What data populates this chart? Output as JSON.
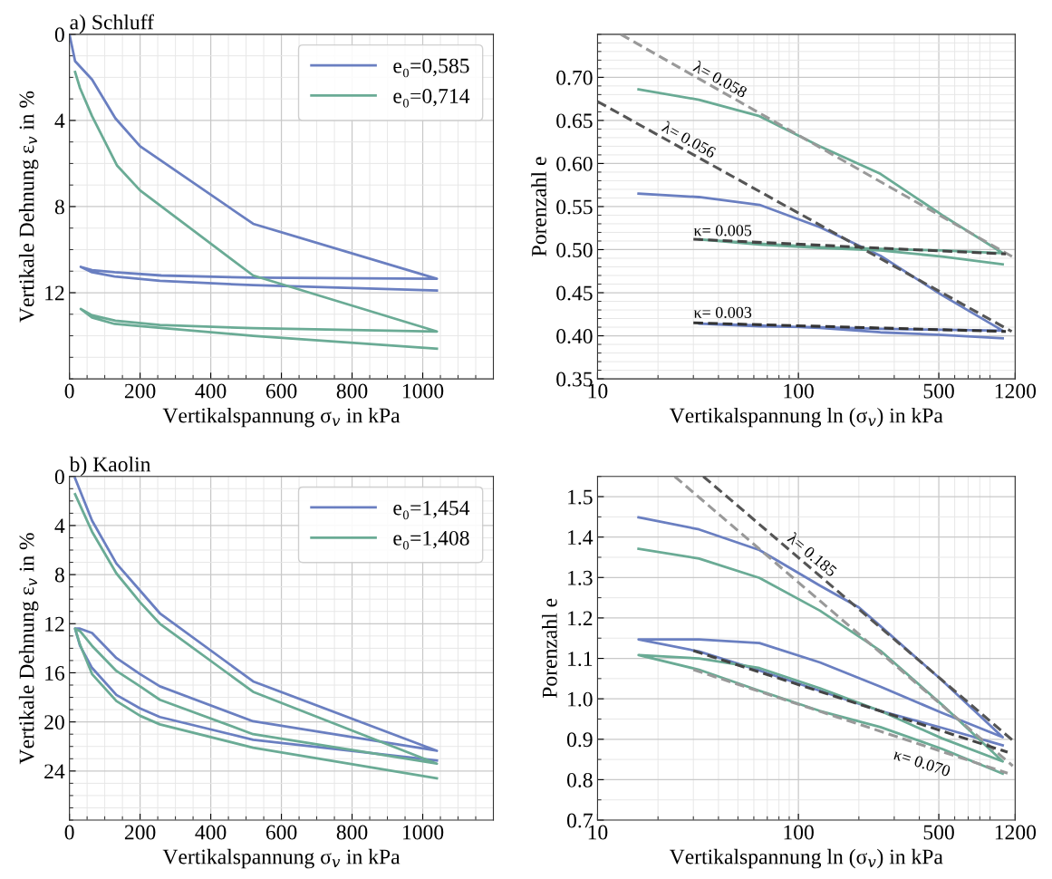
{
  "chart_data": [
    {
      "type": "line",
      "title": "a) Schluff",
      "xlabel": "Vertikalspannung σ$_{v}$ in kPa",
      "ylabel": "Vertikale Dehnung ε$_{v}$ in %",
      "xlim": [
        0,
        1200
      ],
      "xticks": [
        0,
        200,
        400,
        600,
        800,
        1000
      ],
      "ylim": [
        16,
        0
      ],
      "yticks": [
        0,
        4,
        8,
        12
      ],
      "grid": true,
      "legend": "top right",
      "series": [
        {
          "name": "e₀=0,585",
          "color": "#6a7fc1",
          "x": [
            0,
            16,
            64,
            130,
            200,
            520,
            1040,
            520,
            260,
            128,
            64,
            32,
            64,
            128,
            256,
            520,
            1040
          ],
          "values": [
            0,
            1.25,
            2.1,
            3.9,
            5.2,
            8.8,
            11.35,
            11.3,
            11.2,
            11.05,
            10.95,
            10.8,
            11.05,
            11.25,
            11.45,
            11.65,
            11.9
          ]
        },
        {
          "name": "e₀=0,714",
          "color": "#6aab95",
          "x": [
            16,
            30,
            64,
            135,
            200,
            520,
            1040,
            520,
            256,
            130,
            64,
            32,
            64,
            128,
            200,
            520,
            1040
          ],
          "values": [
            1.75,
            2.5,
            3.8,
            6.1,
            7.25,
            11.2,
            13.8,
            13.65,
            13.5,
            13.3,
            13.05,
            12.75,
            13.15,
            13.45,
            13.55,
            14.0,
            14.6
          ]
        }
      ]
    },
    {
      "type": "line",
      "xlabel": "Vertikalspannung ln (σ$_{v}$) in kPa",
      "ylabel": "Porenzahl e",
      "log": "x",
      "xlim": [
        10,
        1200
      ],
      "xticks": [
        10,
        100,
        500,
        1200
      ],
      "ylim": [
        0.35,
        0.75
      ],
      "yticks": [
        {
          "value": 0.35,
          "label": "0.35"
        },
        {
          "value": 0.4,
          "label": "0.40"
        },
        {
          "value": 0.45,
          "label": "0.45"
        },
        {
          "value": 0.5,
          "label": "0.50"
        },
        {
          "value": 0.55,
          "label": "0.55"
        },
        {
          "value": 0.6,
          "label": "0.60"
        },
        {
          "value": 0.65,
          "label": "0.65"
        },
        {
          "value": 0.7,
          "label": "0.70"
        }
      ],
      "grid": true,
      "annotations": [
        "λ= 0.058",
        "λ= 0.056",
        "κ= 0.005",
        "κ= 0.003"
      ],
      "series": [
        {
          "color": "#6a7fc1",
          "x": [
            16,
            32,
            64,
            128,
            256,
            520,
            1040,
            520,
            256,
            128,
            64,
            32,
            64,
            128,
            256,
            520,
            1040
          ],
          "values": [
            0.565,
            0.561,
            0.552,
            0.526,
            0.493,
            0.447,
            0.406,
            0.407,
            0.408,
            0.41,
            0.411,
            0.414,
            0.412,
            0.409,
            0.404,
            0.401,
            0.397
          ]
        },
        {
          "color": "#6aab95",
          "x": [
            16,
            32,
            64,
            128,
            256,
            520,
            1040,
            520,
            256,
            128,
            64,
            32,
            64,
            128,
            256,
            520,
            1040
          ],
          "values": [
            0.686,
            0.674,
            0.655,
            0.62,
            0.588,
            0.54,
            0.496,
            0.499,
            0.501,
            0.503,
            0.507,
            0.512,
            0.506,
            0.502,
            0.499,
            0.492,
            0.483
          ]
        },
        {
          "color": "#999999",
          "line_style": "dashed",
          "x": [
            13.05,
            1200
          ],
          "values": [
            0.75,
            0.49
          ]
        },
        {
          "color": "#555555",
          "line_style": "dashed",
          "x": [
            10,
            1153
          ],
          "values": [
            0.672,
            0.405
          ]
        },
        {
          "color": "#444444",
          "line_style": "dashed",
          "x": [
            30,
            1079
          ],
          "values": [
            0.512,
            0.495
          ]
        },
        {
          "color": "#333333",
          "line_style": "dashed",
          "x": [
            30,
            1079
          ],
          "values": [
            0.415,
            0.405
          ]
        }
      ]
    },
    {
      "type": "line",
      "title": "b) Kaolin",
      "xlabel": "Vertikalspannung σ$_{v}$ in kPa",
      "ylabel": "Vertikale Dehnung ε$_{v}$ in %",
      "xlim": [
        0,
        1200
      ],
      "xticks": [
        0,
        200,
        400,
        600,
        800,
        1000
      ],
      "ylim": [
        28,
        0
      ],
      "yticks": [
        0,
        4,
        8,
        12,
        16,
        20,
        24
      ],
      "grid": true,
      "legend": "top right",
      "series": [
        {
          "name": "e₀=1,454",
          "color": "#6a7fc1",
          "x": [
            16,
            64,
            133,
            200,
            256,
            520,
            1040,
            520,
            256,
            200,
            133,
            64,
            30,
            16,
            30,
            64,
            133,
            200,
            256,
            520,
            1040
          ],
          "values": [
            0.15,
            3.6,
            7.1,
            9.3,
            11.15,
            16.7,
            22.35,
            19.95,
            17.1,
            16.1,
            14.8,
            12.75,
            12.4,
            12.4,
            13.8,
            15.6,
            17.8,
            18.9,
            19.6,
            21.45,
            23.15
          ]
        },
        {
          "name": "e₀=1,408",
          "color": "#6aab95",
          "x": [
            16,
            64,
            133,
            200,
            256,
            520,
            1040,
            520,
            256,
            200,
            133,
            64,
            30,
            16,
            30,
            64,
            133,
            200,
            256,
            520,
            1040
          ],
          "values": [
            1.45,
            4.5,
            7.9,
            10.25,
            12.0,
            17.55,
            23.4,
            21.0,
            18.2,
            17.1,
            15.85,
            13.8,
            12.6,
            12.4,
            13.7,
            16.1,
            18.3,
            19.5,
            20.2,
            22.1,
            24.6
          ]
        }
      ]
    },
    {
      "type": "line",
      "xlabel": "Vertikalspannung ln (σ$_{v}$) in kPa",
      "ylabel": "Porenzahl e",
      "log": "x",
      "xlim": [
        10,
        1200
      ],
      "xticks": [
        10,
        100,
        500,
        1200
      ],
      "ylim": [
        0.7,
        1.55
      ],
      "yticks": [
        0.7,
        0.8,
        0.9,
        {
          "value": 1.0,
          "label": "1.0"
        },
        1.1,
        1.2,
        1.3,
        1.4,
        1.5
      ],
      "grid": true,
      "annotations": [
        "λ= 0.185",
        "κ= 0.070"
      ],
      "series": [
        {
          "color": "#6a7fc1",
          "x": [
            16,
            32,
            64,
            128,
            200,
            256,
            520,
            1040,
            520,
            256,
            128,
            64,
            32,
            16,
            32,
            64,
            128,
            256,
            520,
            1040
          ],
          "values": [
            1.449,
            1.419,
            1.368,
            1.28,
            1.226,
            1.18,
            1.045,
            0.905,
            0.965,
            1.03,
            1.09,
            1.138,
            1.147,
            1.147,
            1.117,
            1.07,
            1.02,
            0.97,
            0.928,
            0.885
          ]
        },
        {
          "color": "#6aab95",
          "x": [
            16,
            32,
            64,
            128,
            256,
            520,
            1040,
            520,
            256,
            128,
            64,
            32,
            16,
            32,
            64,
            128,
            256,
            520,
            1040
          ],
          "values": [
            1.371,
            1.347,
            1.299,
            1.218,
            1.119,
            0.985,
            0.845,
            0.902,
            0.97,
            1.026,
            1.076,
            1.1,
            1.108,
            1.072,
            1.02,
            0.97,
            0.93,
            0.876,
            0.815
          ]
        },
        {
          "color": "#555555",
          "line_style": "dashed",
          "x": [
            33.6,
            1167
          ],
          "values": [
            1.55,
            0.897
          ]
        },
        {
          "color": "#999999",
          "line_style": "dashed",
          "x": [
            24.2,
            1167
          ],
          "values": [
            1.55,
            0.834
          ]
        },
        {
          "color": "#444444",
          "line_style": "dashed",
          "x": [
            30,
            1100
          ],
          "values": [
            1.119,
            0.868
          ]
        },
        {
          "color": "#999999",
          "line_style": "dashed",
          "x": [
            30,
            1100
          ],
          "values": [
            1.072,
            0.816
          ]
        }
      ]
    }
  ]
}
